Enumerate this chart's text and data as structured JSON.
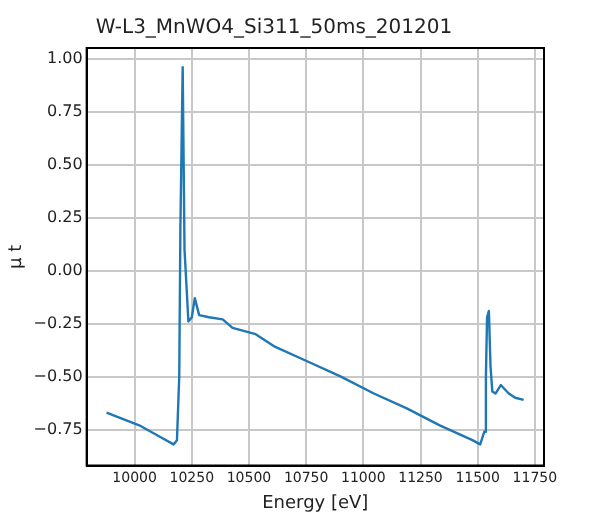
{
  "chart_data": {
    "type": "line",
    "title": "W-L3_MnWO4_Si311_50ms_201201",
    "xlabel": "Energy [eV]",
    "ylabel": "μ t",
    "xlim": [
      9790,
      11790
    ],
    "ylim": [
      -0.92,
      1.05
    ],
    "xticks": [
      10000,
      10250,
      10500,
      10750,
      11000,
      11250,
      11500,
      11750
    ],
    "yticks": [
      {
        "value": -0.75,
        "label": "−0.75"
      },
      {
        "value": -0.5,
        "label": "−0.50"
      },
      {
        "value": -0.25,
        "label": "−0.25"
      },
      {
        "value": 0,
        "label": "0.00"
      },
      {
        "value": 0.25,
        "label": "0.25"
      },
      {
        "value": 0.5,
        "label": "0.50"
      },
      {
        "value": 0.75,
        "label": "0.75"
      },
      {
        "value": 1,
        "label": "1.00"
      }
    ],
    "grid": true,
    "marker": "none",
    "line_style": "solid",
    "series": [
      {
        "color": "#1f77b4",
        "x": [
          9877,
          10020,
          10120,
          10170,
          10185,
          10195,
          10200,
          10210,
          10218,
          10235,
          10250,
          10263,
          10282,
          10325,
          10385,
          10428,
          10529,
          10615,
          10759,
          10902,
          11046,
          11190,
          11334,
          11477,
          11511,
          11529,
          11536,
          11541,
          11549,
          11556,
          11564,
          11578,
          11601,
          11636,
          11664,
          11701
        ],
        "values": [
          -0.67,
          -0.73,
          -0.79,
          -0.82,
          -0.8,
          -0.5,
          0.2,
          0.96,
          0.1,
          -0.24,
          -0.22,
          -0.13,
          -0.21,
          -0.22,
          -0.23,
          -0.27,
          -0.3,
          -0.36,
          -0.43,
          -0.5,
          -0.58,
          -0.65,
          -0.73,
          -0.8,
          -0.82,
          -0.76,
          -0.5,
          -0.22,
          -0.19,
          -0.45,
          -0.57,
          -0.58,
          -0.54,
          -0.58,
          -0.6,
          -0.61
        ]
      }
    ]
  }
}
